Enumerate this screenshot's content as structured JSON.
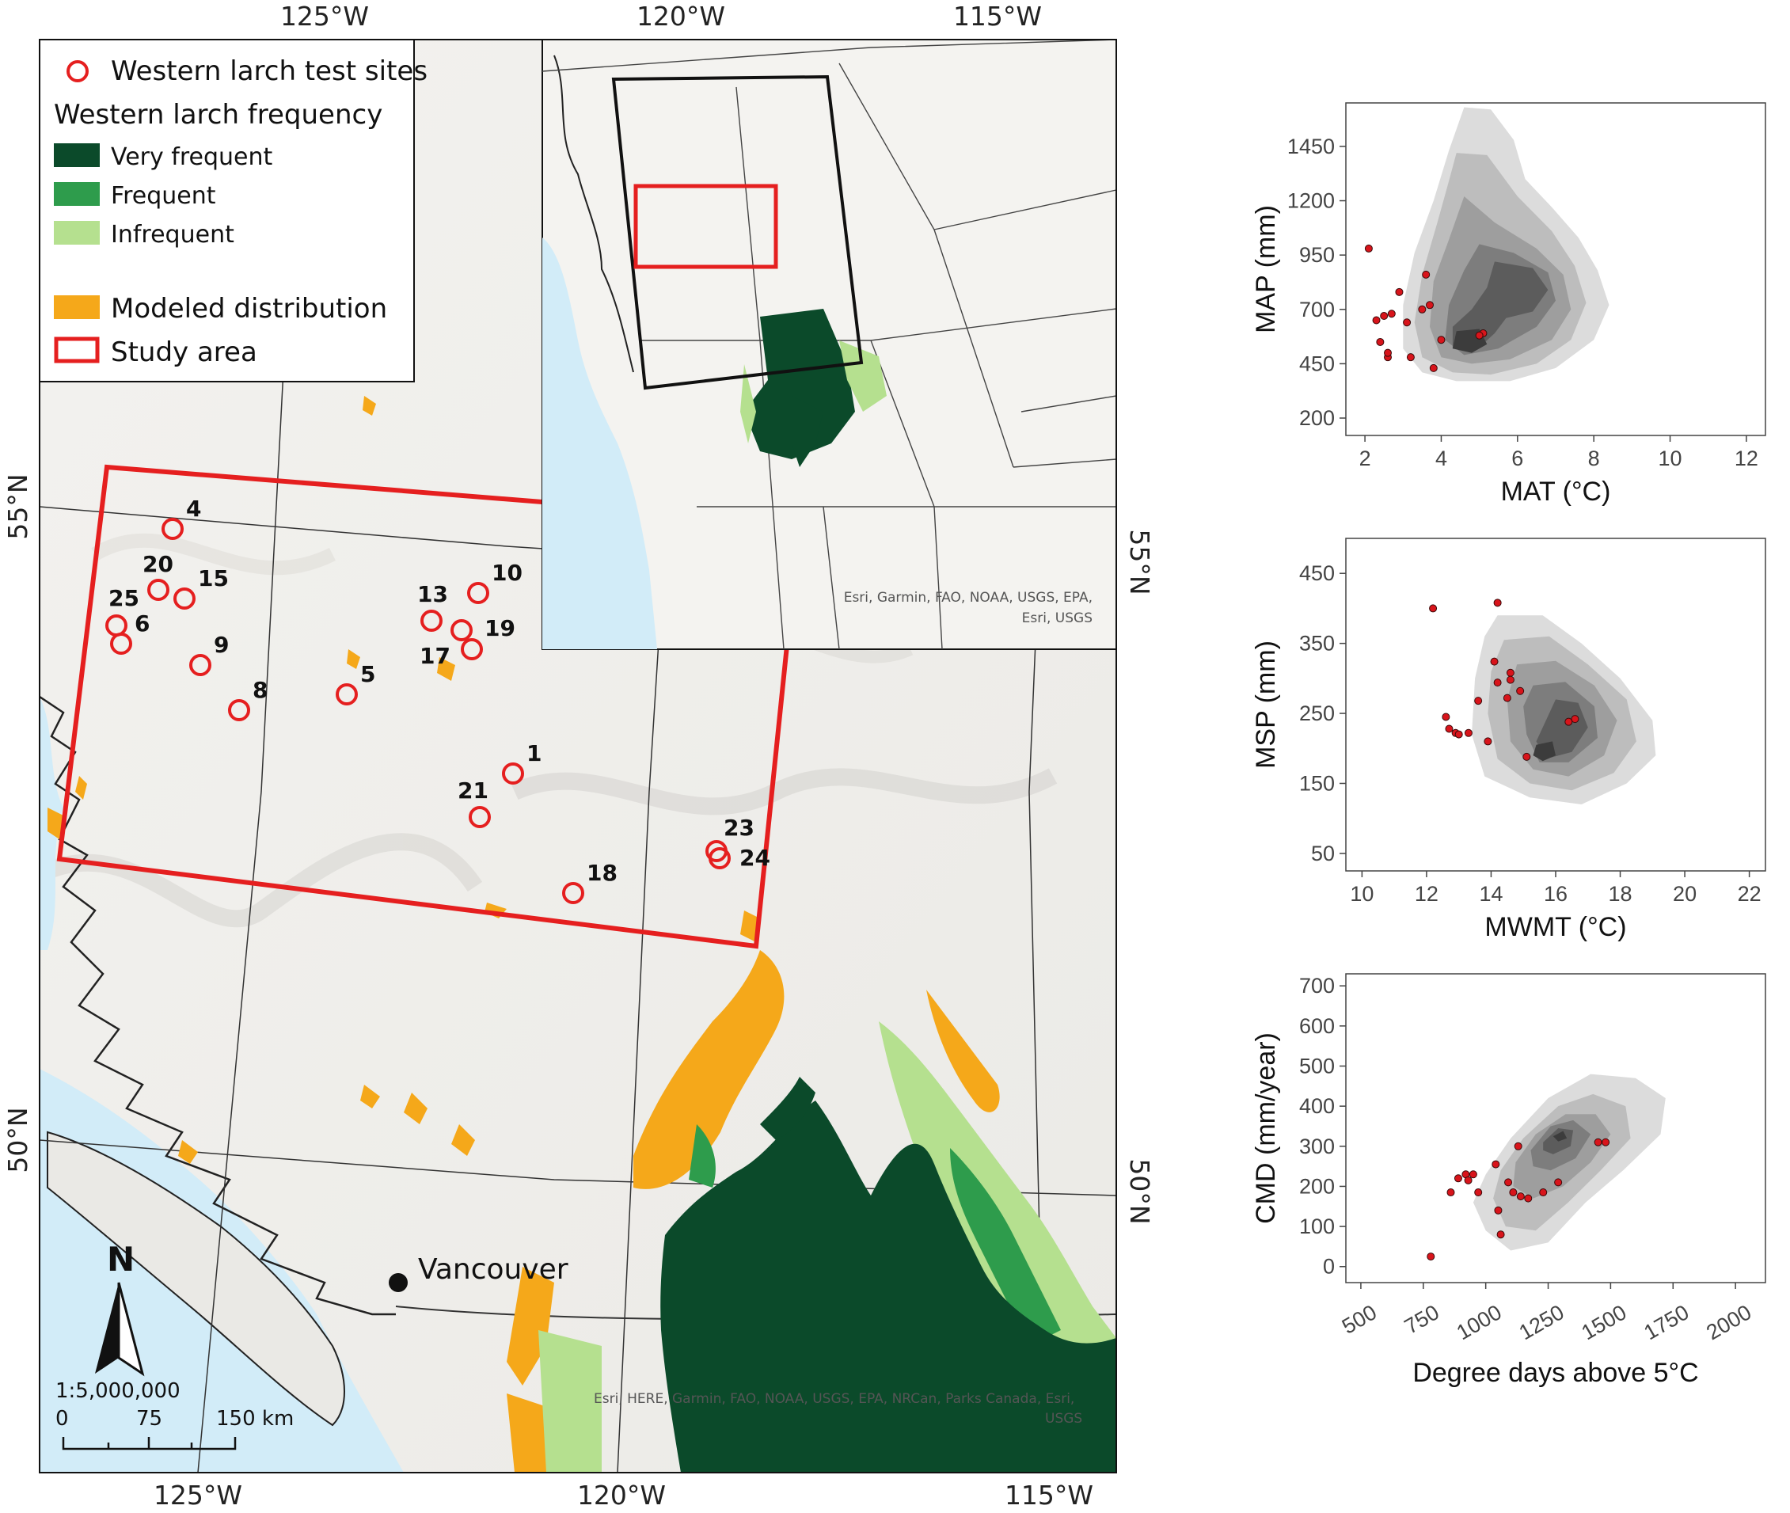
{
  "map": {
    "top_lon_labels": [
      "125°W",
      "120°W",
      "115°W"
    ],
    "bottom_lon_labels": [
      "125°W",
      "120°W",
      "115°W"
    ],
    "left_lat_labels": [
      "55°N",
      "50°N"
    ],
    "right_lat_labels": [
      "55°N",
      "50°N"
    ],
    "legend": {
      "sites_label": "Western larch test sites",
      "frequency_title": "Western larch frequency",
      "very_frequent": "Very frequent",
      "frequent": "Frequent",
      "infrequent": "Infrequent",
      "modeled": "Modeled distribution",
      "study_area": "Study area"
    },
    "colors": {
      "very_frequent": "#0b4a2a",
      "frequent": "#2e9c4c",
      "infrequent": "#b5e08f",
      "modeled": "#f5a81a",
      "study_area": "#e51f1f",
      "site": "#e51f1f",
      "water": "#d2ecf8"
    },
    "sites": [
      "1",
      "4",
      "5",
      "6",
      "8",
      "9",
      "10",
      "13",
      "15",
      "17",
      "18",
      "19",
      "20",
      "21",
      "23",
      "24",
      "25"
    ],
    "city": "Vancouver",
    "north_label": "N",
    "scale_ratio": "1:5,000,000",
    "scale_ticks": [
      "0",
      "75",
      "150 km"
    ],
    "attribution_main": "Esri, HERE, Garmin, FAO, NOAA, USGS, EPA, NRCan, Parks Canada, Esri,",
    "attribution_main_2": "USGS",
    "inset": {
      "attribution_1": "Esri, Garmin, FAO, NOAA, USGS, EPA,",
      "attribution_2": "Esri, USGS"
    }
  },
  "chart_data": [
    {
      "type": "density-scatter",
      "xlabel": "MAT (°C)",
      "ylabel": "MAP (mm)",
      "xlim": [
        1.5,
        12.5
      ],
      "ylim": [
        120,
        1650
      ],
      "xticks": [
        2,
        4,
        6,
        8,
        10,
        12
      ],
      "yticks": [
        200,
        450,
        700,
        950,
        1200,
        1450
      ],
      "density_levels": [
        {
          "level": 1,
          "color": "#dcdcdc",
          "polygon": [
            [
              4.6,
              1630
            ],
            [
              5.3,
              1620
            ],
            [
              5.9,
              1480
            ],
            [
              6.2,
              1300
            ],
            [
              6.9,
              1170
            ],
            [
              7.6,
              1030
            ],
            [
              8.1,
              880
            ],
            [
              8.4,
              720
            ],
            [
              8.0,
              560
            ],
            [
              7.0,
              430
            ],
            [
              5.8,
              370
            ],
            [
              4.4,
              370
            ],
            [
              3.5,
              410
            ],
            [
              3.0,
              520
            ],
            [
              3.0,
              720
            ],
            [
              3.3,
              960
            ],
            [
              3.8,
              1200
            ],
            [
              4.2,
              1430
            ]
          ]
        },
        {
          "level": 2,
          "color": "#bdbdbd",
          "polygon": [
            [
              4.4,
              1420
            ],
            [
              5.2,
              1410
            ],
            [
              6.0,
              1220
            ],
            [
              6.9,
              1060
            ],
            [
              7.5,
              900
            ],
            [
              7.8,
              730
            ],
            [
              7.4,
              560
            ],
            [
              6.5,
              450
            ],
            [
              5.3,
              400
            ],
            [
              4.3,
              410
            ],
            [
              3.5,
              480
            ],
            [
              3.3,
              640
            ],
            [
              3.5,
              860
            ],
            [
              3.9,
              1100
            ],
            [
              4.2,
              1290
            ]
          ]
        },
        {
          "level": 3,
          "color": "#9e9e9e",
          "polygon": [
            [
              4.6,
              1220
            ],
            [
              5.4,
              1100
            ],
            [
              6.5,
              980
            ],
            [
              7.2,
              860
            ],
            [
              7.4,
              700
            ],
            [
              6.9,
              560
            ],
            [
              5.8,
              470
            ],
            [
              4.8,
              450
            ],
            [
              4.0,
              480
            ],
            [
              3.7,
              620
            ],
            [
              3.8,
              830
            ],
            [
              4.2,
              1020
            ]
          ]
        },
        {
          "level": 4,
          "color": "#7d7d7d",
          "polygon": [
            [
              5.0,
              1000
            ],
            [
              5.9,
              960
            ],
            [
              6.8,
              870
            ],
            [
              7.0,
              740
            ],
            [
              6.5,
              620
            ],
            [
              5.5,
              520
            ],
            [
              4.6,
              490
            ],
            [
              4.1,
              560
            ],
            [
              4.2,
              720
            ],
            [
              4.6,
              880
            ]
          ]
        },
        {
          "level": 5,
          "color": "#5c5c5c",
          "polygon": [
            [
              5.4,
              920
            ],
            [
              6.4,
              890
            ],
            [
              6.8,
              790
            ],
            [
              6.4,
              690
            ],
            [
              5.7,
              660
            ],
            [
              5.4,
              590
            ],
            [
              4.9,
              510
            ],
            [
              4.3,
              520
            ],
            [
              4.3,
              620
            ],
            [
              4.8,
              700
            ],
            [
              5.2,
              800
            ]
          ]
        },
        {
          "level": 6,
          "color": "#3c3c3c",
          "polygon": [
            [
              4.4,
              600
            ],
            [
              5.0,
              610
            ],
            [
              5.2,
              540
            ],
            [
              4.8,
              500
            ],
            [
              4.3,
              520
            ]
          ]
        }
      ],
      "points": [
        [
          2.1,
          980
        ],
        [
          2.3,
          650
        ],
        [
          2.5,
          670
        ],
        [
          2.6,
          480
        ],
        [
          2.6,
          500
        ],
        [
          2.4,
          550
        ],
        [
          2.7,
          680
        ],
        [
          2.9,
          780
        ],
        [
          3.1,
          640
        ],
        [
          3.2,
          480
        ],
        [
          3.5,
          700
        ],
        [
          3.6,
          860
        ],
        [
          3.7,
          720
        ],
        [
          3.8,
          430
        ],
        [
          4.0,
          560
        ],
        [
          5.1,
          590
        ],
        [
          5.0,
          580
        ]
      ]
    },
    {
      "type": "density-scatter",
      "xlabel": "MWMT (°C)",
      "ylabel": "MSP (mm)",
      "xlim": [
        9.5,
        22.5
      ],
      "ylim": [
        25,
        500
      ],
      "xticks": [
        10,
        12,
        14,
        16,
        18,
        20,
        22
      ],
      "yticks": [
        50,
        150,
        250,
        350,
        450
      ],
      "density_levels": [
        {
          "level": 1,
          "color": "#dcdcdc",
          "polygon": [
            [
              14.2,
              390
            ],
            [
              15.6,
              390
            ],
            [
              16.8,
              350
            ],
            [
              18.0,
              300
            ],
            [
              19.0,
              240
            ],
            [
              19.1,
              190
            ],
            [
              18.2,
              150
            ],
            [
              16.8,
              120
            ],
            [
              15.2,
              130
            ],
            [
              13.8,
              160
            ],
            [
              13.4,
              220
            ],
            [
              13.5,
              300
            ],
            [
              13.8,
              360
            ]
          ]
        },
        {
          "level": 2,
          "color": "#bdbdbd",
          "polygon": [
            [
              14.4,
              355
            ],
            [
              15.8,
              360
            ],
            [
              17.0,
              320
            ],
            [
              18.2,
              270
            ],
            [
              18.5,
              210
            ],
            [
              17.8,
              165
            ],
            [
              16.5,
              140
            ],
            [
              15.2,
              150
            ],
            [
              14.2,
              185
            ],
            [
              13.9,
              250
            ],
            [
              14.0,
              310
            ]
          ]
        },
        {
          "level": 3,
          "color": "#9e9e9e",
          "polygon": [
            [
              14.8,
              320
            ],
            [
              16.0,
              325
            ],
            [
              17.2,
              290
            ],
            [
              17.9,
              240
            ],
            [
              17.5,
              190
            ],
            [
              16.4,
              160
            ],
            [
              15.3,
              170
            ],
            [
              14.6,
              210
            ],
            [
              14.5,
              270
            ]
          ]
        },
        {
          "level": 4,
          "color": "#7d7d7d",
          "polygon": [
            [
              15.3,
              290
            ],
            [
              16.3,
              295
            ],
            [
              17.2,
              260
            ],
            [
              17.3,
              215
            ],
            [
              16.4,
              180
            ],
            [
              15.5,
              180
            ],
            [
              15.1,
              220
            ],
            [
              15.0,
              260
            ]
          ]
        },
        {
          "level": 5,
          "color": "#5c5c5c",
          "polygon": [
            [
              16.0,
              270
            ],
            [
              16.7,
              265
            ],
            [
              17.0,
              230
            ],
            [
              16.5,
              195
            ],
            [
              15.7,
              185
            ],
            [
              15.4,
              210
            ],
            [
              15.7,
              240
            ]
          ]
        },
        {
          "level": 6,
          "color": "#3c3c3c",
          "polygon": [
            [
              15.4,
              205
            ],
            [
              15.9,
              210
            ],
            [
              16.0,
              190
            ],
            [
              15.6,
              182
            ],
            [
              15.3,
              190
            ]
          ]
        }
      ],
      "points": [
        [
          12.2,
          400
        ],
        [
          14.2,
          408
        ],
        [
          12.6,
          245
        ],
        [
          12.7,
          228
        ],
        [
          12.9,
          222
        ],
        [
          13.0,
          220
        ],
        [
          13.3,
          222
        ],
        [
          13.6,
          268
        ],
        [
          13.9,
          210
        ],
        [
          14.1,
          324
        ],
        [
          14.2,
          294
        ],
        [
          14.5,
          272
        ],
        [
          14.6,
          308
        ],
        [
          14.6,
          298
        ],
        [
          14.9,
          282
        ],
        [
          15.1,
          188
        ],
        [
          16.4,
          238
        ],
        [
          16.6,
          242
        ]
      ]
    },
    {
      "type": "density-scatter",
      "xlabel": "Degree days above 5°C",
      "ylabel": "CMD (mm/year)",
      "xlim": [
        440,
        2120
      ],
      "ylim": [
        -40,
        730
      ],
      "xticks": [
        500,
        750,
        1000,
        1250,
        1500,
        1750,
        2000
      ],
      "yticks": [
        0,
        100,
        200,
        300,
        400,
        500,
        600,
        700
      ],
      "density_levels": [
        {
          "level": 1,
          "color": "#dcdcdc",
          "polygon": [
            [
              1000,
              230
            ],
            [
              1100,
              320
            ],
            [
              1250,
              420
            ],
            [
              1420,
              480
            ],
            [
              1600,
              470
            ],
            [
              1720,
              420
            ],
            [
              1700,
              330
            ],
            [
              1550,
              240
            ],
            [
              1400,
              160
            ],
            [
              1250,
              60
            ],
            [
              1100,
              40
            ],
            [
              1000,
              90
            ],
            [
              950,
              160
            ]
          ]
        },
        {
          "level": 2,
          "color": "#bdbdbd",
          "polygon": [
            [
              1060,
              240
            ],
            [
              1150,
              320
            ],
            [
              1290,
              400
            ],
            [
              1430,
              430
            ],
            [
              1560,
              400
            ],
            [
              1580,
              320
            ],
            [
              1460,
              240
            ],
            [
              1330,
              160
            ],
            [
              1200,
              90
            ],
            [
              1080,
              100
            ],
            [
              1030,
              170
            ]
          ]
        },
        {
          "level": 3,
          "color": "#9e9e9e",
          "polygon": [
            [
              1120,
              260
            ],
            [
              1200,
              330
            ],
            [
              1320,
              380
            ],
            [
              1440,
              380
            ],
            [
              1500,
              330
            ],
            [
              1420,
              260
            ],
            [
              1310,
              200
            ],
            [
              1190,
              170
            ],
            [
              1110,
              200
            ]
          ]
        },
        {
          "level": 4,
          "color": "#7d7d7d",
          "polygon": [
            [
              1180,
              290
            ],
            [
              1260,
              350
            ],
            [
              1350,
              365
            ],
            [
              1420,
              330
            ],
            [
              1360,
              270
            ],
            [
              1260,
              240
            ],
            [
              1190,
              250
            ]
          ]
        },
        {
          "level": 5,
          "color": "#5c5c5c",
          "polygon": [
            [
              1230,
              310
            ],
            [
              1290,
              345
            ],
            [
              1350,
              340
            ],
            [
              1340,
              300
            ],
            [
              1270,
              280
            ],
            [
              1230,
              290
            ]
          ]
        },
        {
          "level": 6,
          "color": "#3c3c3c",
          "polygon": [
            [
              1270,
              325
            ],
            [
              1310,
              338
            ],
            [
              1325,
              320
            ],
            [
              1290,
              312
            ]
          ]
        }
      ],
      "points": [
        [
          780,
          25
        ],
        [
          860,
          185
        ],
        [
          890,
          220
        ],
        [
          920,
          230
        ],
        [
          930,
          215
        ],
        [
          950,
          230
        ],
        [
          970,
          185
        ],
        [
          1040,
          255
        ],
        [
          1050,
          140
        ],
        [
          1060,
          80
        ],
        [
          1090,
          210
        ],
        [
          1110,
          185
        ],
        [
          1130,
          300
        ],
        [
          1140,
          175
        ],
        [
          1170,
          170
        ],
        [
          1230,
          185
        ],
        [
          1290,
          210
        ],
        [
          1450,
          310
        ],
        [
          1480,
          310
        ]
      ]
    }
  ]
}
